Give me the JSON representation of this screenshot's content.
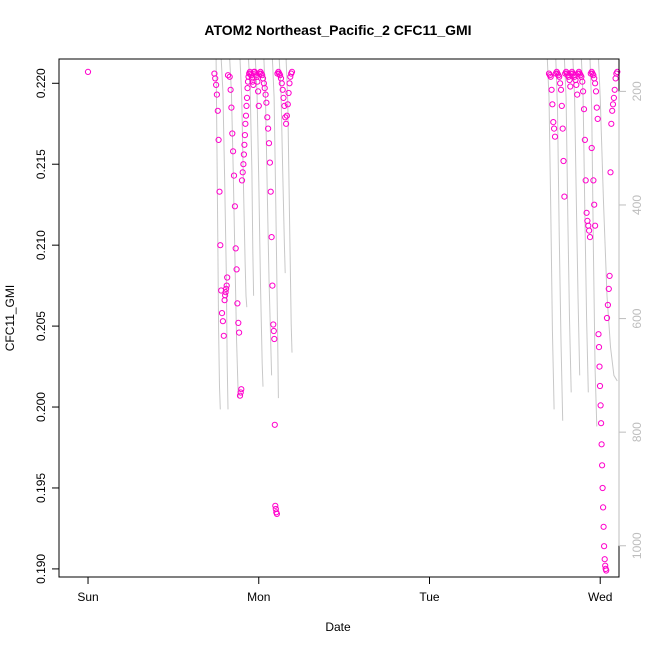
{
  "chart_data": {
    "type": "scatter",
    "title": "ATOM2 Northeast_Pacific_2 CFC11_GMI",
    "xlabel": "Date",
    "ylabel": "CFC11_GMI",
    "x_ticks": [
      "Sun",
      "Mon",
      "Tue",
      "Wed"
    ],
    "x_range_days": [
      -0.17,
      3.11
    ],
    "ylim": [
      0.1895,
      0.2215
    ],
    "y_ticks": [
      "0.190",
      "0.195",
      "0.200",
      "0.205",
      "0.210",
      "0.215",
      "0.220"
    ],
    "y_right_reversed": true,
    "y_right_lim": [
      1055,
      143
    ],
    "y_right_ticks": [
      "200",
      "400",
      "600",
      "800",
      "1000"
    ],
    "grid": false,
    "point_color": "#ff00cc",
    "line_color": "#c8c8c8",
    "right_axis_color": "#bdbdbd",
    "series": [
      {
        "kind": "points",
        "points": [
          [
            0.0,
            0.2207
          ],
          [
            0.74,
            0.2206
          ],
          [
            0.745,
            0.2203
          ],
          [
            0.75,
            0.2199
          ],
          [
            0.755,
            0.2193
          ],
          [
            0.76,
            0.2183
          ],
          [
            0.765,
            0.2165
          ],
          [
            0.77,
            0.2133
          ],
          [
            0.775,
            0.21
          ],
          [
            0.78,
            0.2072
          ],
          [
            0.785,
            0.2058
          ],
          [
            0.79,
            0.2053
          ],
          [
            0.795,
            0.2044
          ],
          [
            0.8,
            0.2066
          ],
          [
            0.803,
            0.2069
          ],
          [
            0.806,
            0.2071
          ],
          [
            0.809,
            0.2073
          ],
          [
            0.812,
            0.2075
          ],
          [
            0.815,
            0.208
          ],
          [
            0.82,
            0.2205
          ],
          [
            0.83,
            0.2204
          ],
          [
            0.835,
            0.2196
          ],
          [
            0.84,
            0.2185
          ],
          [
            0.845,
            0.2169
          ],
          [
            0.85,
            0.2158
          ],
          [
            0.855,
            0.2143
          ],
          [
            0.86,
            0.2124
          ],
          [
            0.865,
            0.2098
          ],
          [
            0.87,
            0.2085
          ],
          [
            0.875,
            0.2064
          ],
          [
            0.88,
            0.2052
          ],
          [
            0.885,
            0.2046
          ],
          [
            0.89,
            0.2007
          ],
          [
            0.894,
            0.2009
          ],
          [
            0.898,
            0.2011
          ],
          [
            0.902,
            0.214
          ],
          [
            0.906,
            0.2145
          ],
          [
            0.91,
            0.215
          ],
          [
            0.913,
            0.2156
          ],
          [
            0.916,
            0.2162
          ],
          [
            0.919,
            0.2168
          ],
          [
            0.922,
            0.2175
          ],
          [
            0.925,
            0.218
          ],
          [
            0.928,
            0.2186
          ],
          [
            0.931,
            0.2191
          ],
          [
            0.934,
            0.2197
          ],
          [
            0.937,
            0.2201
          ],
          [
            0.94,
            0.2204
          ],
          [
            0.944,
            0.2206
          ],
          [
            0.948,
            0.2207
          ],
          [
            0.952,
            0.2206
          ],
          [
            0.956,
            0.2205
          ],
          [
            0.96,
            0.2203
          ],
          [
            0.964,
            0.2201
          ],
          [
            0.968,
            0.2199
          ],
          [
            0.972,
            0.2207
          ],
          [
            0.976,
            0.2207
          ],
          [
            0.98,
            0.2206
          ],
          [
            0.984,
            0.2205
          ],
          [
            0.988,
            0.2204
          ],
          [
            0.992,
            0.2201
          ],
          [
            0.996,
            0.2195
          ],
          [
            1.0,
            0.2186
          ],
          [
            1.005,
            0.2206
          ],
          [
            1.01,
            0.2207
          ],
          [
            1.015,
            0.2206
          ],
          [
            1.02,
            0.2205
          ],
          [
            1.025,
            0.2203
          ],
          [
            1.03,
            0.22
          ],
          [
            1.035,
            0.2197
          ],
          [
            1.04,
            0.2193
          ],
          [
            1.045,
            0.2188
          ],
          [
            1.05,
            0.2179
          ],
          [
            1.055,
            0.2172
          ],
          [
            1.06,
            0.2163
          ],
          [
            1.065,
            0.2151
          ],
          [
            1.07,
            0.2133
          ],
          [
            1.075,
            0.2105
          ],
          [
            1.08,
            0.2075
          ],
          [
            1.085,
            0.2051
          ],
          [
            1.088,
            0.2047
          ],
          [
            1.091,
            0.2042
          ],
          [
            1.094,
            0.1989
          ],
          [
            1.097,
            0.1939
          ],
          [
            1.1,
            0.1937
          ],
          [
            1.103,
            0.1935
          ],
          [
            1.106,
            0.1934
          ],
          [
            1.11,
            0.2206
          ],
          [
            1.115,
            0.2207
          ],
          [
            1.12,
            0.2206
          ],
          [
            1.125,
            0.2205
          ],
          [
            1.13,
            0.2203
          ],
          [
            1.135,
            0.22
          ],
          [
            1.14,
            0.2196
          ],
          [
            1.145,
            0.2191
          ],
          [
            1.15,
            0.2186
          ],
          [
            1.155,
            0.2179
          ],
          [
            1.16,
            0.2175
          ],
          [
            1.165,
            0.218
          ],
          [
            1.17,
            0.2187
          ],
          [
            1.175,
            0.2194
          ],
          [
            1.18,
            0.22
          ],
          [
            1.185,
            0.2204
          ],
          [
            1.19,
            0.2206
          ],
          [
            1.195,
            0.2207
          ],
          [
            2.7,
            0.2206
          ],
          [
            2.705,
            0.2205
          ],
          [
            2.71,
            0.2204
          ],
          [
            2.715,
            0.2196
          ],
          [
            2.72,
            0.2187
          ],
          [
            2.725,
            0.2176
          ],
          [
            2.73,
            0.2172
          ],
          [
            2.735,
            0.2167
          ],
          [
            2.74,
            0.2206
          ],
          [
            2.745,
            0.2207
          ],
          [
            2.75,
            0.2206
          ],
          [
            2.755,
            0.2205
          ],
          [
            2.76,
            0.2204
          ],
          [
            2.765,
            0.22
          ],
          [
            2.77,
            0.2196
          ],
          [
            2.775,
            0.2186
          ],
          [
            2.78,
            0.2172
          ],
          [
            2.785,
            0.2152
          ],
          [
            2.79,
            0.213
          ],
          [
            2.795,
            0.2206
          ],
          [
            2.8,
            0.2207
          ],
          [
            2.805,
            0.2206
          ],
          [
            2.81,
            0.2205
          ],
          [
            2.815,
            0.2204
          ],
          [
            2.82,
            0.2202
          ],
          [
            2.825,
            0.2198
          ],
          [
            2.83,
            0.2206
          ],
          [
            2.835,
            0.2207
          ],
          [
            2.84,
            0.2206
          ],
          [
            2.845,
            0.2205
          ],
          [
            2.85,
            0.2204
          ],
          [
            2.855,
            0.2202
          ],
          [
            2.86,
            0.2199
          ],
          [
            2.865,
            0.2193
          ],
          [
            2.87,
            0.2206
          ],
          [
            2.875,
            0.2207
          ],
          [
            2.88,
            0.2206
          ],
          [
            2.885,
            0.2205
          ],
          [
            2.89,
            0.2204
          ],
          [
            2.895,
            0.2201
          ],
          [
            2.9,
            0.2195
          ],
          [
            2.905,
            0.2184
          ],
          [
            2.91,
            0.2165
          ],
          [
            2.915,
            0.214
          ],
          [
            2.92,
            0.212
          ],
          [
            2.925,
            0.2115
          ],
          [
            2.93,
            0.2112
          ],
          [
            2.935,
            0.2109
          ],
          [
            2.94,
            0.2105
          ],
          [
            2.945,
            0.2206
          ],
          [
            2.95,
            0.2207
          ],
          [
            2.955,
            0.2206
          ],
          [
            2.96,
            0.2205
          ],
          [
            2.965,
            0.2203
          ],
          [
            2.97,
            0.22
          ],
          [
            2.975,
            0.2195
          ],
          [
            2.98,
            0.2185
          ],
          [
            2.985,
            0.2178
          ],
          [
            2.95,
            0.216
          ],
          [
            2.96,
            0.214
          ],
          [
            2.965,
            0.2125
          ],
          [
            2.97,
            0.2112
          ],
          [
            2.99,
            0.2045
          ],
          [
            2.993,
            0.2037
          ],
          [
            2.996,
            0.2025
          ],
          [
            2.999,
            0.2013
          ],
          [
            3.002,
            0.2001
          ],
          [
            3.005,
            0.199
          ],
          [
            3.008,
            0.1977
          ],
          [
            3.011,
            0.1964
          ],
          [
            3.014,
            0.195
          ],
          [
            3.017,
            0.1938
          ],
          [
            3.02,
            0.1926
          ],
          [
            3.023,
            0.1914
          ],
          [
            3.026,
            0.1906
          ],
          [
            3.029,
            0.1902
          ],
          [
            3.032,
            0.19
          ],
          [
            3.035,
            0.1899
          ],
          [
            3.04,
            0.2055
          ],
          [
            3.045,
            0.2063
          ],
          [
            3.05,
            0.2073
          ],
          [
            3.055,
            0.2081
          ],
          [
            3.06,
            0.2145
          ],
          [
            3.065,
            0.2175
          ],
          [
            3.07,
            0.2183
          ],
          [
            3.075,
            0.2187
          ],
          [
            3.08,
            0.2191
          ],
          [
            3.085,
            0.2196
          ],
          [
            3.09,
            0.2203
          ],
          [
            3.095,
            0.2206
          ],
          [
            3.1,
            0.2207
          ]
        ]
      },
      {
        "kind": "pressure-lines",
        "axis": "right",
        "lines": [
          [
            [
              0.75,
              143
            ],
            [
              0.755,
              290
            ],
            [
              0.76,
              460
            ],
            [
              0.765,
              620
            ],
            [
              0.77,
              720
            ],
            [
              0.775,
              760
            ]
          ],
          [
            [
              0.78,
              143
            ],
            [
              0.79,
              200
            ],
            [
              0.8,
              350
            ],
            [
              0.81,
              520
            ],
            [
              0.815,
              680
            ],
            [
              0.82,
              760
            ]
          ],
          [
            [
              0.83,
              143
            ],
            [
              0.84,
              200
            ],
            [
              0.85,
              330
            ],
            [
              0.86,
              490
            ],
            [
              0.87,
              640
            ],
            [
              0.88,
              740
            ]
          ],
          [
            [
              0.89,
              143
            ],
            [
              0.9,
              210
            ],
            [
              0.91,
              360
            ],
            [
              0.92,
              500
            ],
            [
              0.925,
              560
            ],
            [
              0.93,
              580
            ]
          ],
          [
            [
              0.94,
              143
            ],
            [
              0.95,
              200
            ],
            [
              0.96,
              340
            ],
            [
              0.965,
              480
            ],
            [
              0.97,
              560
            ]
          ],
          [
            [
              0.98,
              143
            ],
            [
              0.99,
              200
            ],
            [
              1.0,
              360
            ],
            [
              1.01,
              540
            ],
            [
              1.02,
              680
            ],
            [
              1.025,
              720
            ]
          ],
          [
            [
              1.03,
              143
            ],
            [
              1.04,
              220
            ],
            [
              1.05,
              380
            ],
            [
              1.06,
              530
            ],
            [
              1.07,
              640
            ],
            [
              1.075,
              700
            ]
          ],
          [
            [
              1.08,
              143
            ],
            [
              1.09,
              210
            ],
            [
              1.1,
              400
            ],
            [
              1.11,
              610
            ],
            [
              1.115,
              740
            ]
          ],
          [
            [
              1.12,
              143
            ],
            [
              1.13,
              200
            ],
            [
              1.14,
              340
            ],
            [
              1.15,
              470
            ],
            [
              1.155,
              520
            ]
          ],
          [
            [
              1.16,
              143
            ],
            [
              1.17,
              220
            ],
            [
              1.18,
              420
            ],
            [
              1.19,
              610
            ],
            [
              1.195,
              660
            ]
          ],
          [
            [
              2.69,
              143
            ],
            [
              2.7,
              210
            ],
            [
              2.71,
              400
            ],
            [
              2.72,
              620
            ],
            [
              2.73,
              760
            ]
          ],
          [
            [
              2.74,
              143
            ],
            [
              2.75,
              230
            ],
            [
              2.76,
              450
            ],
            [
              2.77,
              640
            ],
            [
              2.78,
              780
            ]
          ],
          [
            [
              2.79,
              143
            ],
            [
              2.8,
              210
            ],
            [
              2.81,
              420
            ],
            [
              2.82,
              600
            ],
            [
              2.83,
              730
            ]
          ],
          [
            [
              2.84,
              143
            ],
            [
              2.85,
              210
            ],
            [
              2.86,
              390
            ],
            [
              2.87,
              560
            ],
            [
              2.88,
              700
            ]
          ],
          [
            [
              2.89,
              143
            ],
            [
              2.9,
              210
            ],
            [
              2.91,
              420
            ],
            [
              2.92,
              600
            ],
            [
              2.93,
              730
            ]
          ],
          [
            [
              2.94,
              143
            ],
            [
              2.95,
              230
            ],
            [
              2.96,
              480
            ],
            [
              2.97,
              690
            ],
            [
              2.98,
              790
            ]
          ],
          [
            [
              2.99,
              143
            ],
            [
              3.0,
              210
            ],
            [
              3.02,
              400
            ],
            [
              3.04,
              560
            ],
            [
              3.06,
              650
            ],
            [
              3.08,
              700
            ],
            [
              3.1,
              710
            ]
          ]
        ]
      }
    ]
  }
}
